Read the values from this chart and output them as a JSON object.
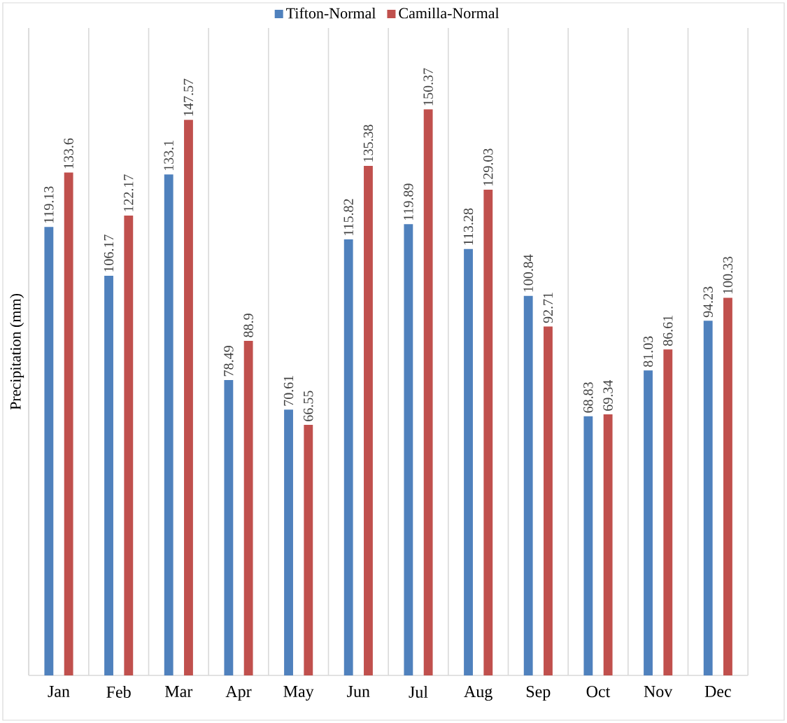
{
  "chart_data": {
    "type": "bar",
    "ylabel": "Precipitation (mm)",
    "categories": [
      "Jan",
      "Feb",
      "Mar",
      "Apr",
      "May",
      "Jun",
      "Jul",
      "Aug",
      "Sep",
      "Oct",
      "Nov",
      "Dec"
    ],
    "series": [
      {
        "name": "Tifton-Normal",
        "color": "#4f81bd",
        "values": [
          119.13,
          106.17,
          133.1,
          78.49,
          70.61,
          115.82,
          119.89,
          113.28,
          100.84,
          68.83,
          81.03,
          94.23
        ]
      },
      {
        "name": "Camilla-Normal",
        "color": "#c0504d",
        "values": [
          133.6,
          122.17,
          147.57,
          88.9,
          66.55,
          135.38,
          150.37,
          129.03,
          92.71,
          69.34,
          86.61,
          100.33
        ]
      }
    ],
    "ylim": [
      0,
      172
    ],
    "grid": "x",
    "legend": "top",
    "data_labels": true
  }
}
